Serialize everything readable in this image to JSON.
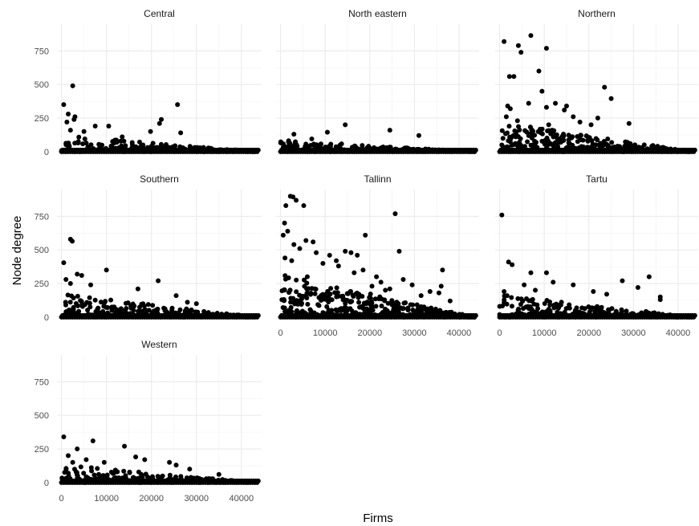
{
  "chart_data": {
    "type": "scatter",
    "facet_layout": "wrap-3-columns",
    "xlabel": "Firms",
    "ylabel": "Node degree",
    "xlim": [
      -1000,
      44500
    ],
    "ylim": [
      -25,
      950
    ],
    "x_ticks": [
      0,
      10000,
      20000,
      30000,
      40000
    ],
    "y_ticks": [
      0,
      250,
      500,
      750
    ],
    "grid": true,
    "point_color": "#000000",
    "panels": [
      {
        "name": "Central",
        "outliers": [
          [
            500,
            350
          ],
          [
            2500,
            490
          ],
          [
            1500,
            280
          ],
          [
            2800,
            240
          ],
          [
            1200,
            220
          ],
          [
            3000,
            260
          ],
          [
            7500,
            190
          ],
          [
            10500,
            190
          ],
          [
            22200,
            240
          ],
          [
            21800,
            210
          ],
          [
            25800,
            350
          ],
          [
            26500,
            140
          ],
          [
            19800,
            150
          ],
          [
            2000,
            160
          ],
          [
            5000,
            150
          ],
          [
            13500,
            110
          ]
        ],
        "bulk": {
          "x_start": 0,
          "x_end": 43500,
          "top_start": 120,
          "top_end": 0,
          "n": 240,
          "seed": 11
        }
      },
      {
        "name": "North eastern",
        "outliers": [
          [
            10500,
            145
          ],
          [
            14500,
            200
          ],
          [
            24500,
            160
          ],
          [
            31000,
            120
          ],
          [
            3000,
            130
          ],
          [
            7000,
            95
          ]
        ],
        "bulk": {
          "x_start": 0,
          "x_end": 43500,
          "top_start": 85,
          "top_end": 0,
          "n": 200,
          "seed": 23
        }
      },
      {
        "name": "Northern",
        "outliers": [
          [
            1000,
            820
          ],
          [
            7000,
            865
          ],
          [
            4200,
            790
          ],
          [
            4800,
            740
          ],
          [
            10500,
            770
          ],
          [
            8800,
            600
          ],
          [
            2200,
            560
          ],
          [
            3200,
            560
          ],
          [
            9500,
            450
          ],
          [
            23500,
            480
          ],
          [
            25000,
            395
          ],
          [
            1800,
            340
          ],
          [
            2400,
            320
          ],
          [
            6500,
            360
          ],
          [
            12500,
            360
          ],
          [
            15000,
            340
          ],
          [
            10500,
            330
          ],
          [
            14500,
            310
          ],
          [
            16500,
            260
          ],
          [
            18000,
            220
          ],
          [
            29000,
            210
          ],
          [
            20500,
            200
          ],
          [
            22000,
            250
          ],
          [
            1500,
            260
          ],
          [
            4000,
            230
          ],
          [
            11000,
            200
          ]
        ],
        "bulk": {
          "x_start": 0,
          "x_end": 43500,
          "top_start": 220,
          "top_end": 0,
          "n": 300,
          "seed": 37
        }
      },
      {
        "name": "Southern",
        "outliers": [
          [
            2000,
            580
          ],
          [
            2400,
            565
          ],
          [
            500,
            405
          ],
          [
            3500,
            320
          ],
          [
            4500,
            310
          ],
          [
            10000,
            350
          ],
          [
            21500,
            270
          ],
          [
            25500,
            160
          ],
          [
            1000,
            280
          ],
          [
            2000,
            250
          ],
          [
            6500,
            240
          ],
          [
            17000,
            210
          ],
          [
            28000,
            110
          ],
          [
            30000,
            100
          ]
        ],
        "bulk": {
          "x_start": 0,
          "x_end": 43500,
          "top_start": 170,
          "top_end": 0,
          "n": 260,
          "seed": 41
        }
      },
      {
        "name": "Tallinn",
        "outliers": [
          [
            2200,
            900
          ],
          [
            2800,
            895
          ],
          [
            3500,
            870
          ],
          [
            1200,
            830
          ],
          [
            5200,
            830
          ],
          [
            25700,
            770
          ],
          [
            900,
            700
          ],
          [
            1600,
            640
          ],
          [
            600,
            610
          ],
          [
            5700,
            570
          ],
          [
            7300,
            560
          ],
          [
            19000,
            610
          ],
          [
            26600,
            490
          ],
          [
            14500,
            490
          ],
          [
            15800,
            480
          ],
          [
            17200,
            460
          ],
          [
            3000,
            540
          ],
          [
            4300,
            510
          ],
          [
            8000,
            480
          ],
          [
            11000,
            460
          ],
          [
            13000,
            380
          ],
          [
            9500,
            400
          ],
          [
            12500,
            420
          ],
          [
            21500,
            300
          ],
          [
            27500,
            280
          ],
          [
            36300,
            350
          ],
          [
            36000,
            230
          ],
          [
            29500,
            240
          ],
          [
            22500,
            260
          ],
          [
            23500,
            200
          ],
          [
            31500,
            160
          ],
          [
            35500,
            180
          ],
          [
            1000,
            440
          ],
          [
            2500,
            420
          ],
          [
            6000,
            300
          ],
          [
            16500,
            330
          ],
          [
            18500,
            350
          ],
          [
            20500,
            230
          ],
          [
            24500,
            210
          ],
          [
            33500,
            190
          ],
          [
            38000,
            120
          ]
        ],
        "bulk": {
          "x_start": 0,
          "x_end": 43500,
          "top_start": 320,
          "top_end": 0,
          "n": 420,
          "seed": 53
        }
      },
      {
        "name": "Tartu",
        "outliers": [
          [
            500,
            760
          ],
          [
            2000,
            410
          ],
          [
            2800,
            390
          ],
          [
            7000,
            330
          ],
          [
            10500,
            330
          ],
          [
            33500,
            300
          ],
          [
            27500,
            270
          ],
          [
            31000,
            220
          ],
          [
            16500,
            240
          ],
          [
            36000,
            150
          ],
          [
            36000,
            130
          ],
          [
            5500,
            240
          ],
          [
            8000,
            200
          ],
          [
            12000,
            260
          ],
          [
            21000,
            190
          ],
          [
            24000,
            170
          ],
          [
            1000,
            190
          ]
        ],
        "bulk": {
          "x_start": 0,
          "x_end": 43500,
          "top_start": 170,
          "top_end": 0,
          "n": 260,
          "seed": 67
        }
      },
      {
        "name": "Western",
        "outliers": [
          [
            500,
            340
          ],
          [
            7000,
            310
          ],
          [
            14000,
            270
          ],
          [
            3500,
            250
          ],
          [
            16500,
            190
          ],
          [
            18500,
            170
          ],
          [
            24000,
            150
          ],
          [
            25500,
            130
          ],
          [
            1500,
            200
          ],
          [
            2500,
            150
          ],
          [
            5500,
            170
          ],
          [
            9500,
            150
          ],
          [
            28500,
            100
          ],
          [
            35000,
            60
          ]
        ],
        "bulk": {
          "x_start": 0,
          "x_end": 43500,
          "top_start": 130,
          "top_end": 0,
          "n": 240,
          "seed": 79
        }
      }
    ]
  }
}
